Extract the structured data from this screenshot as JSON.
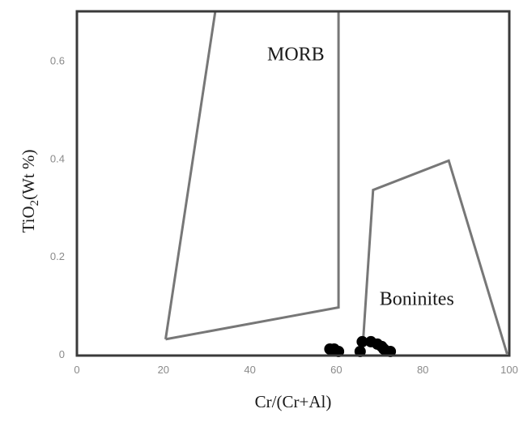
{
  "chart_data": {
    "type": "scatter",
    "xlabel": "Cr/(Cr+Al)",
    "ylabel_main": "TiO",
    "ylabel_sub": "2",
    "ylabel_tail": "(Wt %)",
    "xlim": [
      0,
      100
    ],
    "ylim": [
      0,
      0.7
    ],
    "xticks": [
      0,
      20,
      40,
      60,
      80,
      100
    ],
    "xtick_labels": [
      "0",
      "20",
      "40",
      "60",
      "80",
      "100"
    ],
    "yticks": [
      0,
      0.2,
      0.4,
      0.6
    ],
    "ytick_labels": [
      "0",
      "0.2",
      "0.4",
      "0.6"
    ],
    "grid": false,
    "legend": "none",
    "fields": [
      {
        "name": "MORB",
        "label_at": [
          44,
          0.6
        ],
        "polygon": [
          [
            20.5,
            0.03
          ],
          [
            32,
            0.7
          ],
          [
            60.5,
            0.7
          ],
          [
            60.5,
            0.095
          ],
          [
            20.5,
            0.03
          ]
        ]
      },
      {
        "name": "Boninites",
        "label_at": [
          70,
          0.1
        ],
        "polygon": [
          [
            66,
            0.0
          ],
          [
            68.5,
            0.335
          ],
          [
            86,
            0.395
          ],
          [
            99.5,
            0.0
          ]
        ]
      }
    ],
    "points": [
      {
        "x": 58.5,
        "y": 0.01
      },
      {
        "x": 59.5,
        "y": 0.01
      },
      {
        "x": 60.5,
        "y": 0.005
      },
      {
        "x": 65.5,
        "y": 0.005
      },
      {
        "x": 66,
        "y": 0.025
      },
      {
        "x": 68,
        "y": 0.025
      },
      {
        "x": 69.5,
        "y": 0.02
      },
      {
        "x": 70.5,
        "y": 0.015
      },
      {
        "x": 71,
        "y": 0.01
      },
      {
        "x": 72.5,
        "y": 0.005
      }
    ],
    "colors": {
      "frame": "#3a3a3a",
      "field_outline": "#777777",
      "points": "#000000",
      "tick_labels": "#8a8a8a"
    }
  }
}
